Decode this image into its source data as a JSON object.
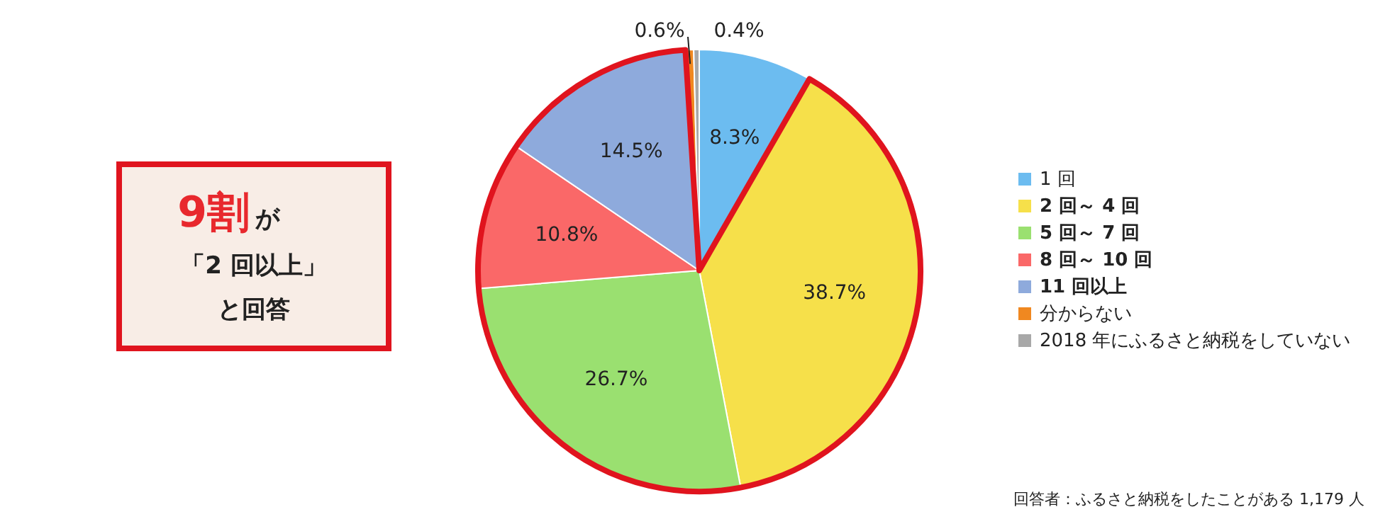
{
  "chart_data": {
    "type": "pie",
    "categories": [
      "1 回",
      "2 回～ 4 回",
      "5 回～ 7 回",
      "8 回～ 10 回",
      "11 回以上",
      "分からない",
      "2018 年にふるさと納税をしていない"
    ],
    "values": [
      8.3,
      38.7,
      26.7,
      10.8,
      14.5,
      0.6,
      0.4
    ],
    "colors": [
      "#6cbcf0",
      "#f6e04a",
      "#9ae070",
      "#fa6868",
      "#8eaadc",
      "#f08820",
      "#a8a8a8"
    ],
    "value_labels": [
      "8.3%",
      "38.7%",
      "26.7%",
      "10.8%",
      "14.5%",
      "0.6%",
      "0.4%"
    ],
    "legend": "right",
    "annotations": [
      "9割",
      "が",
      "「2 回以上」",
      "と回答",
      "回答者：ふるさと納税をしたことがある 1,179 人"
    ]
  }
}
